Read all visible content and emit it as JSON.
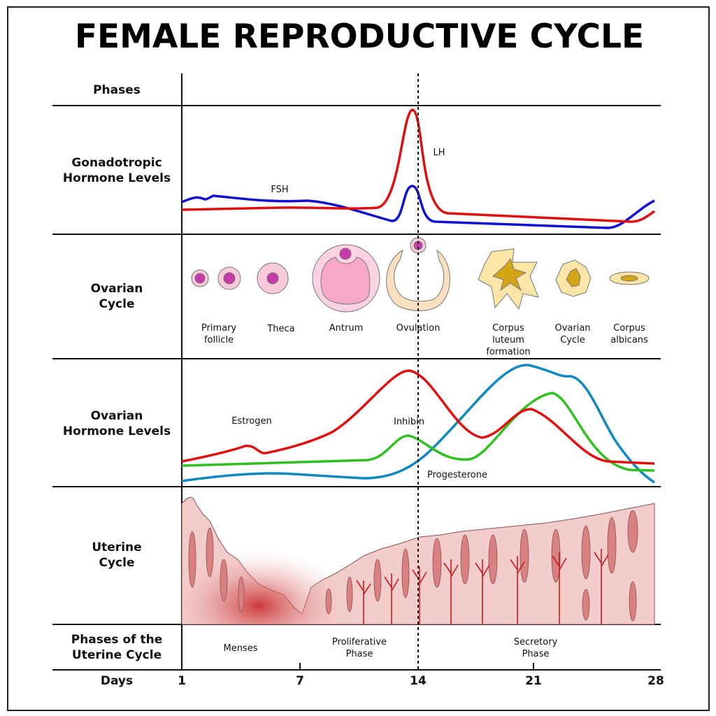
{
  "title": "FEMALE REPRODUCTIVE CYCLE",
  "rows": {
    "phases": "Phases",
    "gonadotropic": [
      "Gonadotropic",
      "Hormone Levels"
    ],
    "ovarian_cycle": [
      "Ovarian",
      "Cycle"
    ],
    "ovarian_hormones": [
      "Ovarian",
      "Hormone Levels"
    ],
    "uterine_cycle": [
      "Uterine",
      "Cycle"
    ],
    "uterine_phases": [
      "Phases of the",
      "Uterine Cycle"
    ],
    "days": "Days"
  },
  "gonadotropic_curves": {
    "fsh": {
      "label": "FSH",
      "color": "#1010d0"
    },
    "lh": {
      "label": "LH",
      "color": "#e01010"
    }
  },
  "ovarian_stages": [
    {
      "label": [
        "Primary",
        "follicle"
      ]
    },
    {
      "label": [
        "Theca"
      ]
    },
    {
      "label": [
        "Antrum"
      ]
    },
    {
      "label": [
        "Ovulation"
      ]
    },
    {
      "label": [
        "Corpus",
        "luteum",
        "formation"
      ]
    },
    {
      "label": [
        "Ovarian",
        "Cycle"
      ]
    },
    {
      "label": [
        "Corpus",
        "albicans"
      ]
    }
  ],
  "ovarian_hormone_curves": {
    "estrogen": {
      "label": "Estrogen",
      "color": "#e01010"
    },
    "inhibin": {
      "label": "Inhibin",
      "color": "#30c020"
    },
    "progesterone": {
      "label": "Progesterone",
      "color": "#1088c0"
    }
  },
  "uterine_phases": [
    {
      "label": [
        "Menses"
      ]
    },
    {
      "label": [
        "Proliferative",
        "Phase"
      ]
    },
    {
      "label": [
        "Secretory",
        "Phase"
      ]
    }
  ],
  "days": [
    "1",
    "7",
    "14",
    "21",
    "28"
  ],
  "colors": {
    "follicle_pink": "#f9c9dc",
    "oocyte": "#c83aa8",
    "antrum": "#f7a8c8",
    "luteum_pale": "#fbe6a8",
    "luteum_core": "#d4a516",
    "endometrium": "#f3cccc",
    "gland": "#d98080",
    "menses_red": "#c82828"
  }
}
